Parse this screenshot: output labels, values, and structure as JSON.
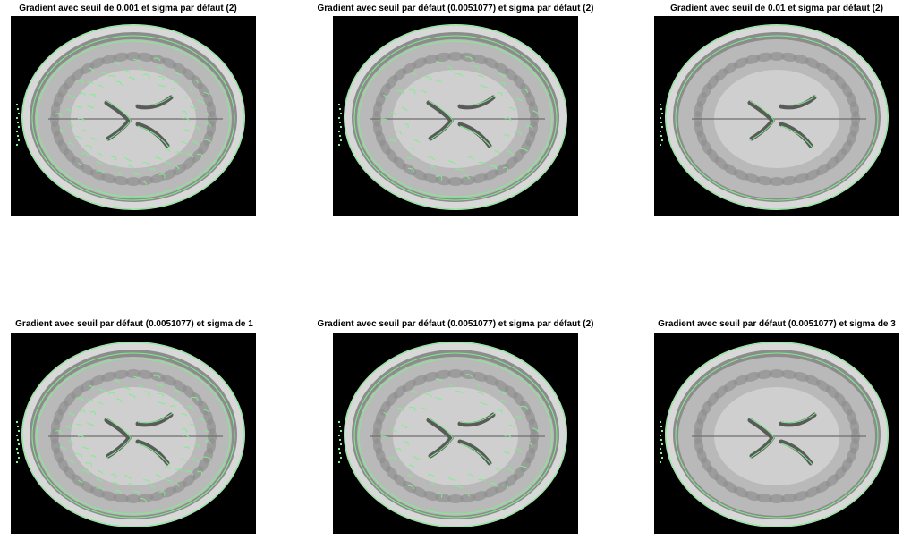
{
  "figure": {
    "panels": [
      {
        "title": "Gradient avec seuil de 0.001 et sigma par défaut (2)",
        "edge_density": "high"
      },
      {
        "title": "Gradient avec seuil par défaut (0.0051077) et sigma par défaut (2)",
        "edge_density": "medium"
      },
      {
        "title": "Gradient avec seuil de 0.01 et sigma par défaut (2)",
        "edge_density": "low"
      },
      {
        "title": "Gradient avec seuil par défaut (0.0051077) et sigma de 1",
        "edge_density": "high"
      },
      {
        "title": "Gradient avec seuil par défaut (0.0051077) et sigma par défaut (2)",
        "edge_density": "medium"
      },
      {
        "title": "Gradient avec seuil par défaut (0.0051077) et sigma de 3",
        "edge_density": "low"
      }
    ],
    "colors": {
      "background": "#000000",
      "edge": "#7cf08a",
      "skull": "#d8d8d8",
      "brain": "#b9b9b9"
    }
  }
}
